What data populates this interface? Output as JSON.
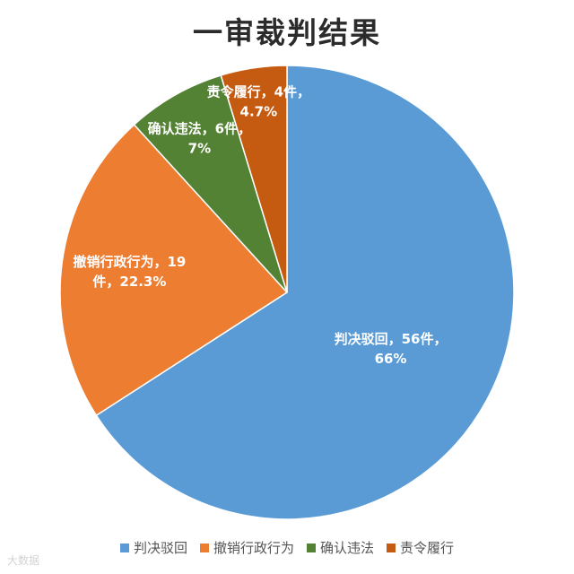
{
  "chart_data": {
    "type": "pie",
    "title": "一审裁判结果",
    "start_angle_deg": 0,
    "direction": "clockwise",
    "legend_position": "bottom",
    "slices": [
      {
        "label": "判决驳回",
        "value": 56,
        "percent": 66,
        "color": "#5b9bd5",
        "data_label_lines": [
          "判决驳回，56件，",
          "66%"
        ]
      },
      {
        "label": "撤销行政行为",
        "value": 19,
        "percent": 22.3,
        "color": "#ed7d31",
        "data_label_lines": [
          "撤销行政行为，19",
          "件，22.3%"
        ]
      },
      {
        "label": "确认违法",
        "value": 6,
        "percent": 7,
        "color": "#548235",
        "data_label_lines": [
          "确认违法，6件，",
          "7%"
        ]
      },
      {
        "label": "责令履行",
        "value": 4,
        "percent": 4.7,
        "color": "#c55a11",
        "data_label_lines": [
          "责令履行，4件，",
          "4.7%"
        ]
      }
    ]
  },
  "watermark": "大数据"
}
